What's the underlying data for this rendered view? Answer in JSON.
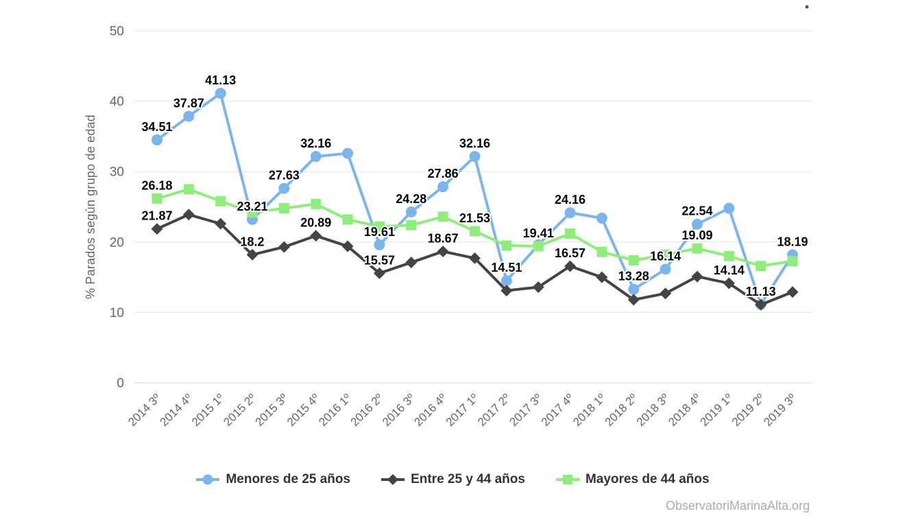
{
  "chart_data": {
    "type": "line",
    "title": "",
    "xlabel": "",
    "ylabel": "% Parados según grupo de edad",
    "ylim": [
      0,
      50
    ],
    "yticks": [
      0,
      10,
      20,
      30,
      40,
      50
    ],
    "grid": true,
    "legend_position": "bottom",
    "categories": [
      "2014 3º",
      "2014 4º",
      "2015 1º",
      "2015 2º",
      "2015 3º",
      "2015 4º",
      "2016 1º",
      "2016 2º",
      "2016 3º",
      "2016 4º",
      "2017 1º",
      "2017 2º",
      "2017 3º",
      "2017 4º",
      "2018 1º",
      "2018 2º",
      "2018 3º",
      "2018 4º",
      "2019 1º",
      "2019 2º",
      "2019 3º"
    ],
    "series": [
      {
        "name": "Menores de 25 años",
        "color": "#7cb5ec",
        "marker": "circle",
        "values": [
          34.51,
          37.87,
          41.13,
          23.21,
          27.63,
          32.16,
          32.6,
          19.61,
          24.28,
          27.86,
          32.16,
          14.51,
          19.6,
          24.16,
          23.4,
          13.28,
          16.14,
          22.54,
          24.8,
          11.13,
          18.19
        ],
        "labels": {
          "0": "34.51",
          "1": "37.87",
          "2": "41.13",
          "3": "23.21",
          "4": "27.63",
          "5": "32.16",
          "7": "19.61",
          "8": "24.28",
          "9": "27.86",
          "10": "32.16",
          "11": "14.51",
          "13": "24.16",
          "15": "13.28",
          "16": "16.14",
          "17": "22.54",
          "19": "11.13",
          "20": "18.19"
        }
      },
      {
        "name": "Entre 25 y 44 años",
        "color": "#434348",
        "marker": "diamond",
        "values": [
          21.87,
          23.9,
          22.6,
          18.2,
          19.3,
          20.89,
          19.4,
          15.57,
          17.1,
          18.67,
          17.7,
          13.1,
          13.6,
          16.57,
          15.0,
          11.8,
          12.7,
          15.1,
          14.14,
          11.1,
          12.9
        ],
        "labels": {
          "0": "21.87",
          "3": "18.2",
          "5": "20.89",
          "7": "15.57",
          "9": "18.67",
          "13": "16.57",
          "18": "14.14"
        }
      },
      {
        "name": "Mayores de 44 años",
        "color": "#90ed7d",
        "marker": "square",
        "values": [
          26.18,
          27.5,
          25.8,
          24.2,
          24.8,
          25.4,
          23.2,
          22.2,
          22.4,
          23.6,
          21.53,
          19.5,
          19.41,
          21.2,
          18.6,
          17.4,
          18.2,
          19.09,
          18.0,
          16.6,
          17.3
        ],
        "labels": {
          "0": "26.18",
          "10": "21.53",
          "12": "19.41",
          "17": "19.09"
        }
      }
    ],
    "style": {
      "grid_color": "#e6e6e6",
      "axis_line_color": "#ccd6eb",
      "tick_label_color": "#666666",
      "data_label_color": "#000000",
      "legend_text_color": "#333333",
      "credit_color": "#ababab"
    }
  },
  "footer": {
    "credit": "ObservatoriMarinaAlta.org"
  }
}
